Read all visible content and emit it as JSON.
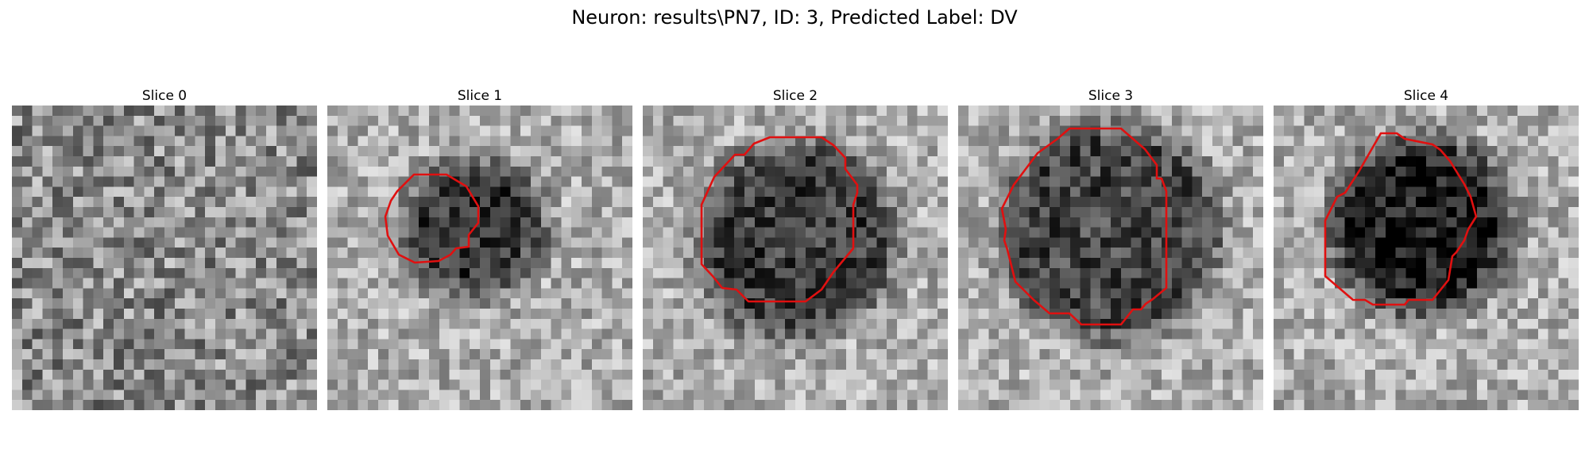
{
  "figure": {
    "title": "Neuron: results\\PN7, ID: 3, Predicted Label: DV"
  },
  "panels": [
    {
      "title": "Slice 0",
      "has_outline": false,
      "center_tone": 0.52,
      "seed": 11
    },
    {
      "title": "Slice 1",
      "has_outline": true,
      "center_tone": 0.22,
      "seed": 23
    },
    {
      "title": "Slice 2",
      "has_outline": true,
      "center_tone": 0.24,
      "seed": 37
    },
    {
      "title": "Slice 3",
      "has_outline": true,
      "center_tone": 0.27,
      "seed": 51
    },
    {
      "title": "Slice 4",
      "has_outline": true,
      "center_tone": 0.12,
      "seed": 67
    }
  ],
  "colors": {
    "outline": "#e01010",
    "background": "#ffffff"
  }
}
